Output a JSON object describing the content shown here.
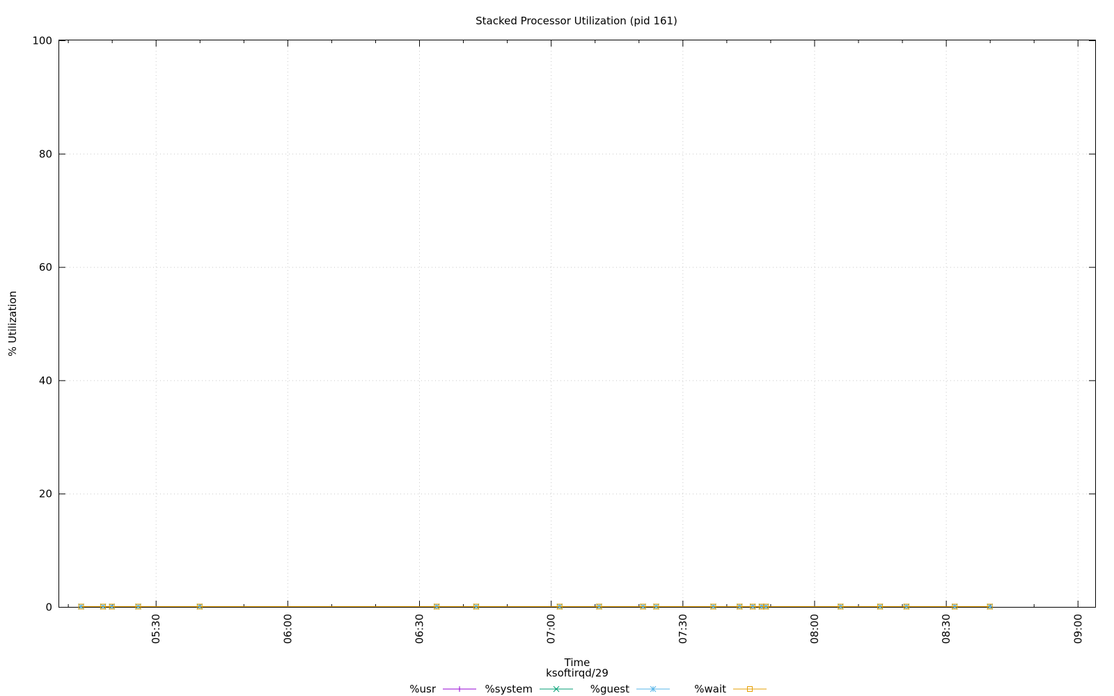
{
  "chart_data": {
    "type": "line",
    "title": "Stacked Processor Utilization (pid 161)",
    "xlabel": "Time",
    "xlabel2": "ksoftirqd/29",
    "ylabel": "% Utilization",
    "ylim": [
      0,
      100
    ],
    "xlim": [
      "05:08",
      "09:04"
    ],
    "y_ticks": [
      "0",
      "20",
      "40",
      "60",
      "80",
      "100"
    ],
    "x_ticks": [
      "05:30",
      "06:00",
      "06:30",
      "07:00",
      "07:30",
      "08:00",
      "08:30",
      "09:00"
    ],
    "grid": true,
    "legend_position": "bottom",
    "x": [
      "05:13",
      "05:18",
      "05:20",
      "05:26",
      "05:40",
      "06:34",
      "06:43",
      "07:02",
      "07:11",
      "07:21",
      "07:24",
      "07:37",
      "07:43",
      "07:46",
      "07:48",
      "07:49",
      "08:06",
      "08:15",
      "08:21",
      "08:32",
      "08:40"
    ],
    "series": [
      {
        "name": "%usr",
        "color": "#9400d3",
        "marker": "plus",
        "values": [
          0,
          0,
          0,
          0,
          0,
          0,
          0,
          0,
          0,
          0,
          0,
          0,
          0,
          0,
          0,
          0,
          0,
          0,
          0,
          0,
          0
        ]
      },
      {
        "name": "%system",
        "color": "#009e73",
        "marker": "cross",
        "values": [
          0,
          0,
          0,
          0,
          0,
          0,
          0,
          0,
          0,
          0,
          0,
          0,
          0,
          0,
          0,
          0,
          0,
          0,
          0,
          0,
          0
        ]
      },
      {
        "name": "%guest",
        "color": "#56b4e9",
        "marker": "star",
        "values": [
          0,
          0,
          0,
          0,
          0,
          0,
          0,
          0,
          0,
          0,
          0,
          0,
          0,
          0,
          0,
          0,
          0,
          0,
          0,
          0,
          0
        ]
      },
      {
        "name": "%wait",
        "color": "#e69f00",
        "marker": "square",
        "values": [
          0,
          0,
          0,
          0,
          0,
          0,
          0,
          0,
          0,
          0,
          0,
          0,
          0,
          0,
          0,
          0,
          0,
          0,
          0,
          0,
          0
        ]
      }
    ]
  }
}
